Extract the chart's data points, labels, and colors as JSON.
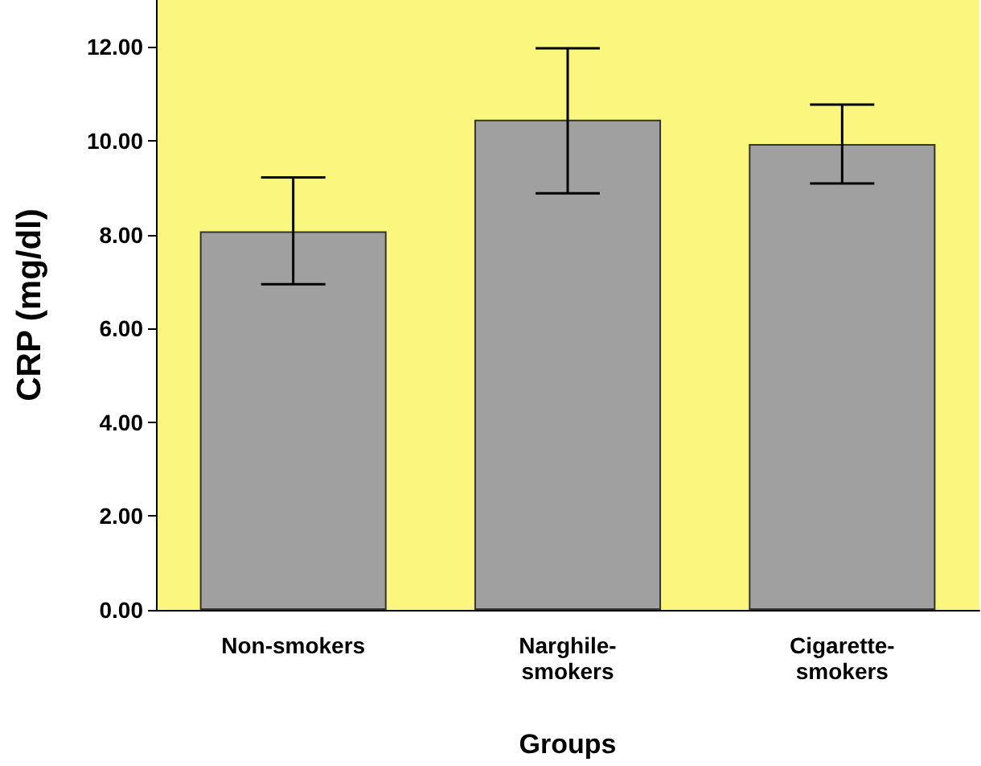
{
  "chart_data": {
    "type": "bar",
    "xlabel": "Groups",
    "ylabel": "CRP (mg/dl)",
    "categories": [
      "Non-smokers",
      "Narghile-\nsmokers",
      "Cigarette-\nsmokers"
    ],
    "values": [
      8.07,
      10.45,
      9.93
    ],
    "color": "#a0a0a0",
    "errors": [
      [
        6.94,
        9.22
      ],
      [
        8.88,
        11.97
      ],
      [
        9.09,
        10.77
      ]
    ],
    "ylim": [
      0,
      13
    ],
    "yticks": [
      {
        "value": 0,
        "label": "0.00"
      },
      {
        "value": 2,
        "label": "2.00"
      },
      {
        "value": 4,
        "label": "4.00"
      },
      {
        "value": 6,
        "label": "6.00"
      },
      {
        "value": 8,
        "label": "8.00"
      },
      {
        "value": 10,
        "label": "10.00"
      },
      {
        "value": 12,
        "label": "12.00"
      }
    ],
    "grid": false
  }
}
